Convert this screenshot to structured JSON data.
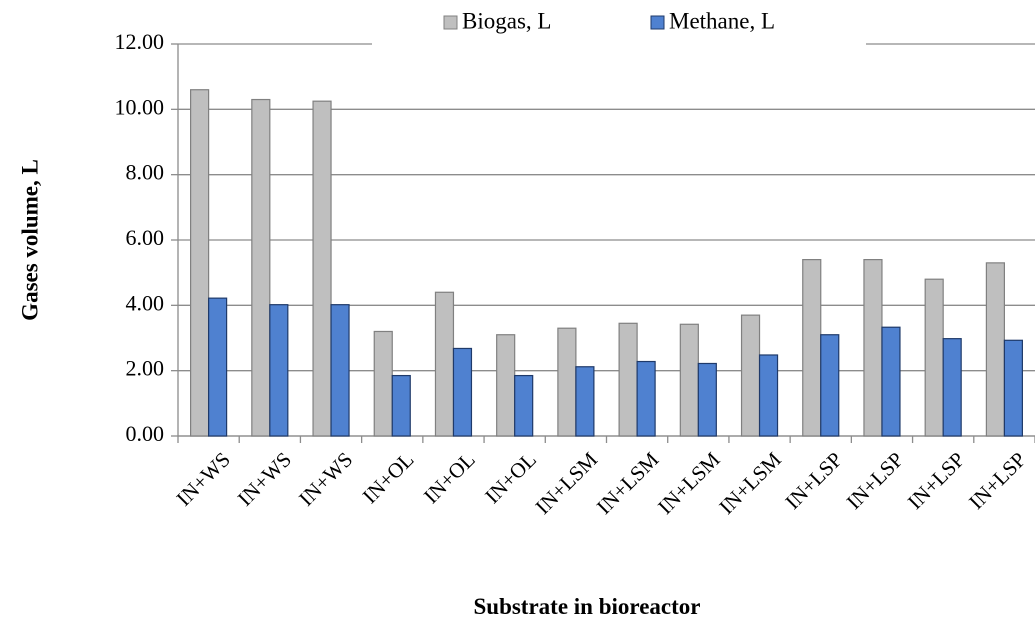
{
  "chart_data": {
    "type": "bar",
    "x_label": "Substrate in bioreactor",
    "y_label": "Gases volume, L",
    "categories": [
      "IN+WS",
      "IN+WS",
      "IN+WS",
      "IN+OL",
      "IN+OL",
      "IN+OL",
      "IN+LSM",
      "IN+LSM",
      "IN+LSM",
      "IN+LSM",
      "IN+LSP",
      "IN+LSP",
      "IN+LSP",
      "IN+LSP"
    ],
    "series": [
      {
        "name": "Biogas, L",
        "color": "#bfbfbf",
        "values": [
          10.6,
          10.3,
          10.25,
          3.2,
          4.4,
          3.1,
          3.3,
          3.45,
          3.42,
          3.7,
          5.4,
          5.4,
          4.8,
          5.3
        ]
      },
      {
        "name": "Methane, L",
        "color": "#4f81d0",
        "values": [
          4.22,
          4.02,
          4.02,
          1.85,
          2.68,
          1.85,
          2.12,
          2.28,
          2.22,
          2.48,
          3.1,
          3.33,
          2.98,
          2.93
        ]
      }
    ],
    "ylim": [
      0,
      12
    ],
    "yticks": [
      {
        "value": 0,
        "label": "0.00"
      },
      {
        "value": 2,
        "label": "2.00"
      },
      {
        "value": 4,
        "label": "4.00"
      },
      {
        "value": 6,
        "label": "6.00"
      },
      {
        "value": 8,
        "label": "8.00"
      },
      {
        "value": 10,
        "label": "10.00"
      },
      {
        "value": 12,
        "label": "12.00"
      }
    ],
    "grid": true,
    "legend": "top"
  }
}
